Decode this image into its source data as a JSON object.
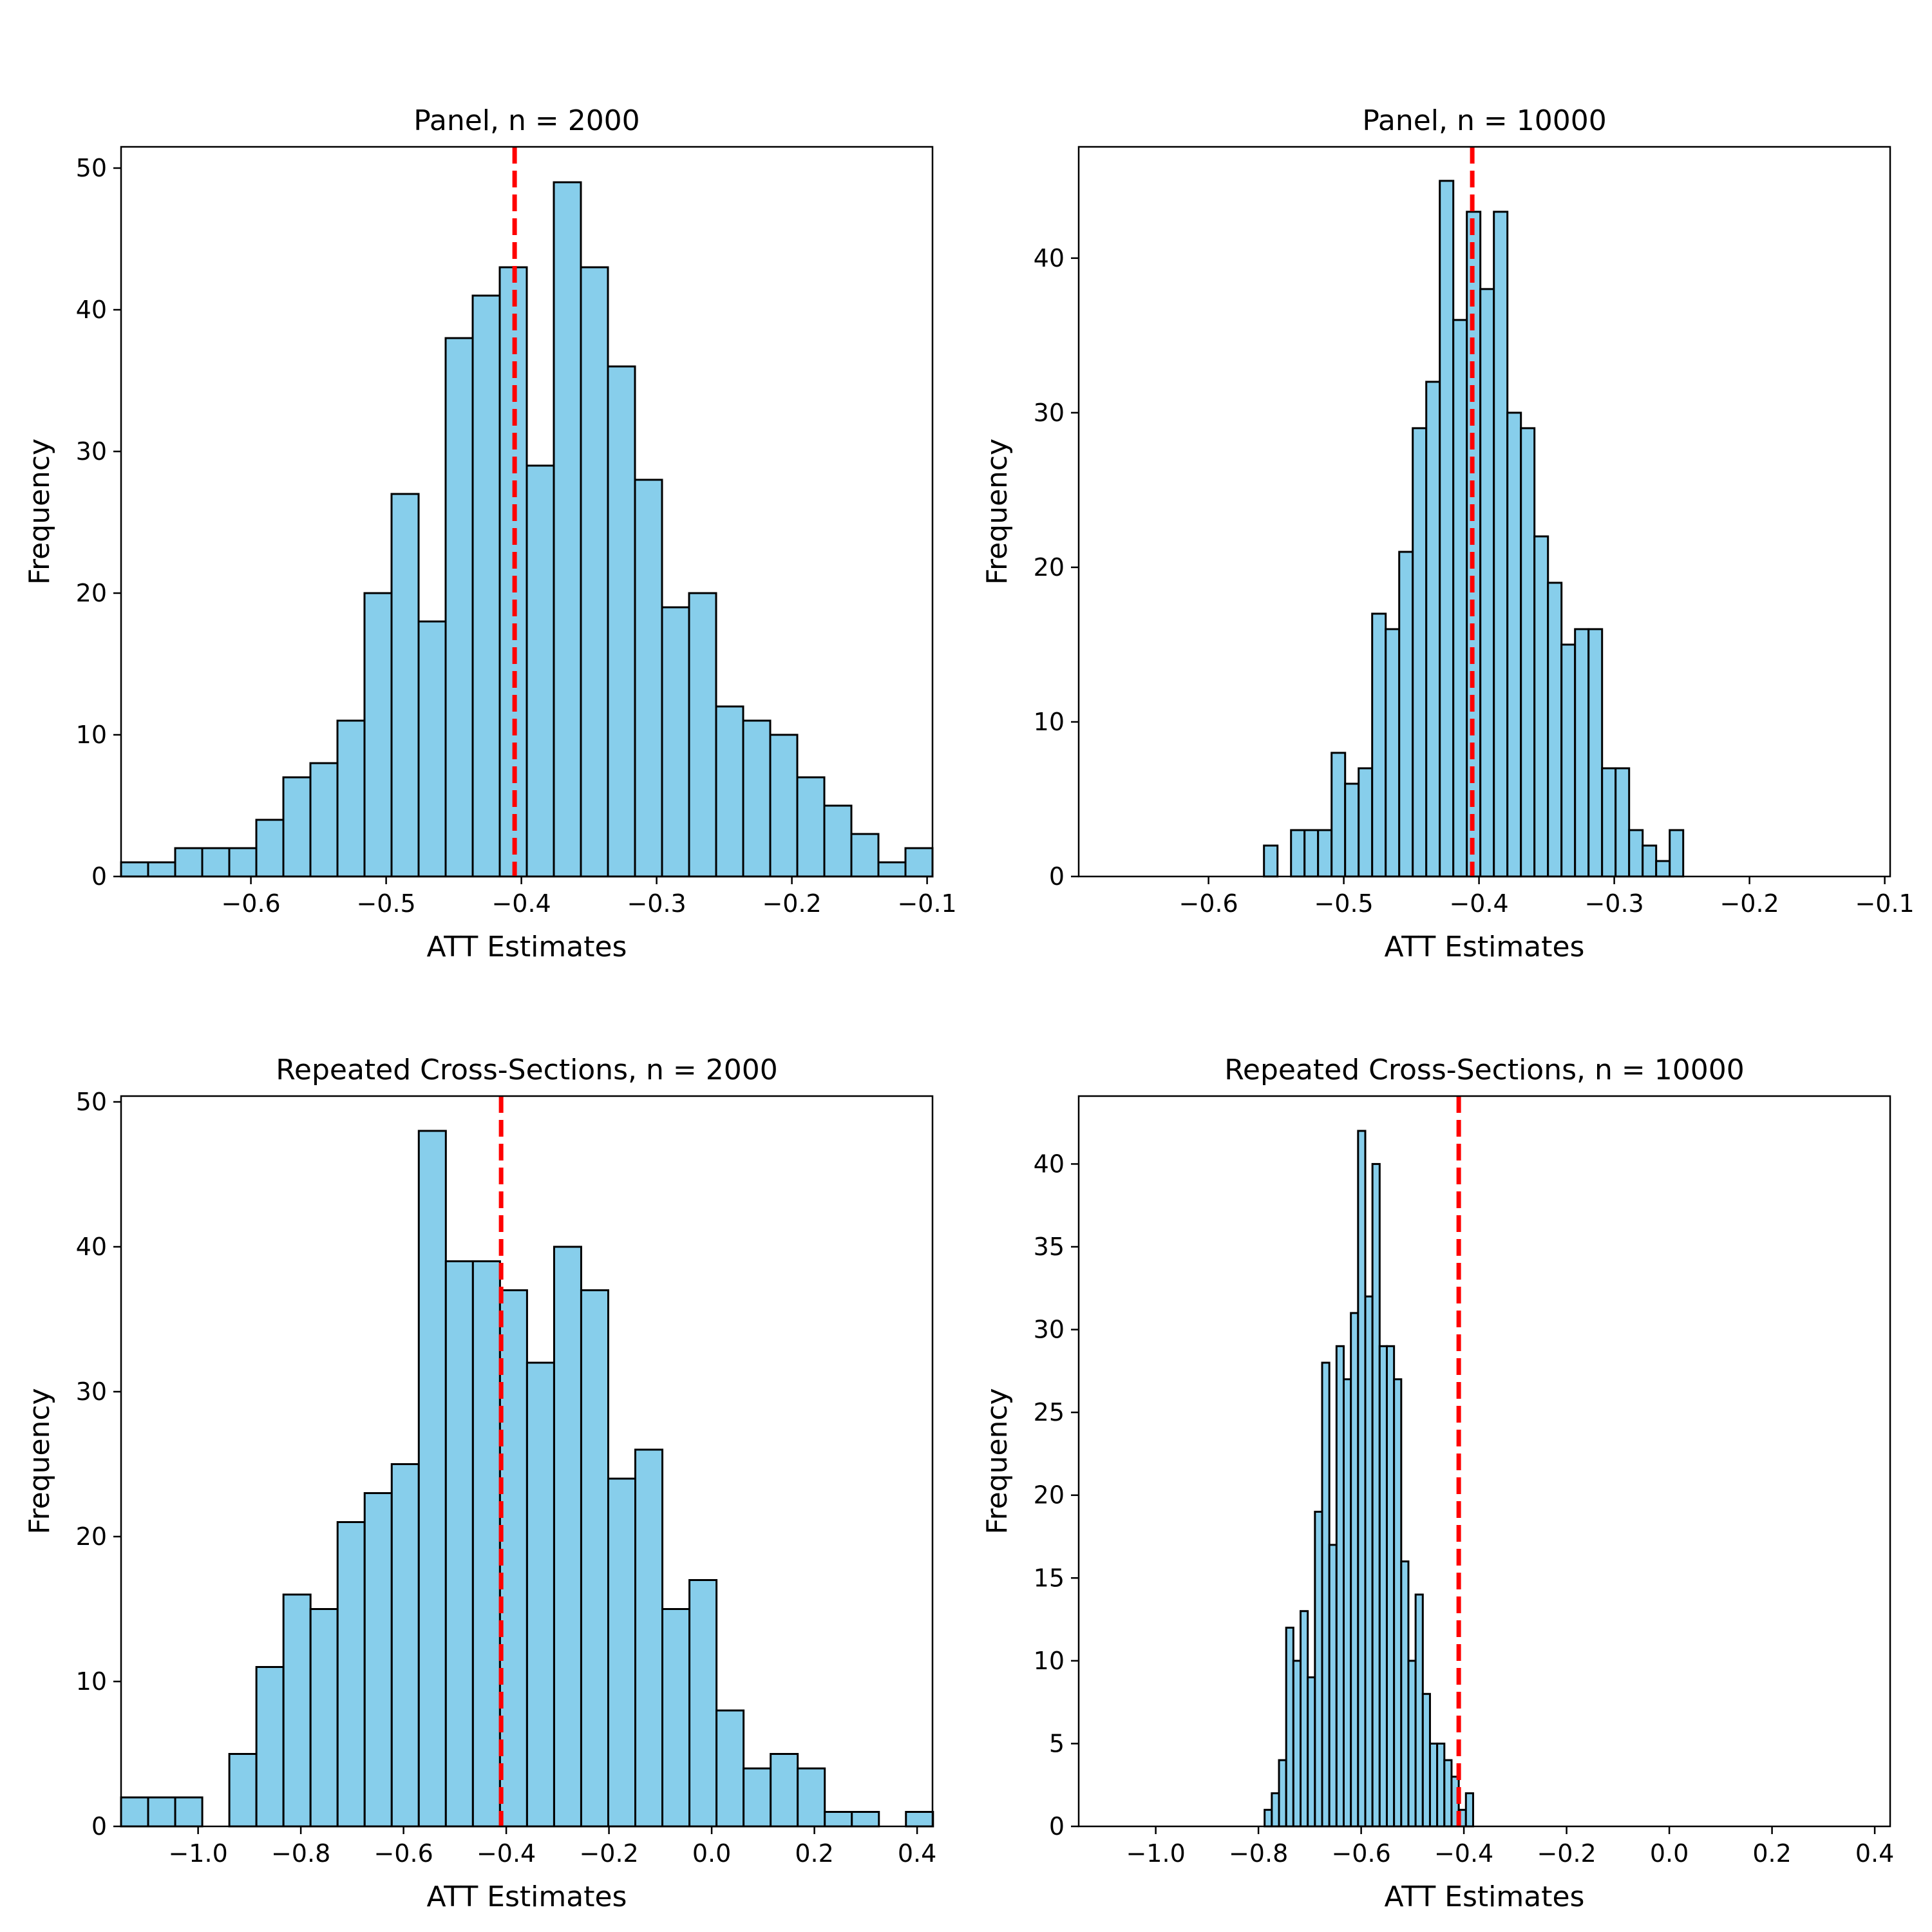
{
  "colors": {
    "bar_fill": "#87CEEB",
    "bar_edge": "#000000",
    "reference_line": "#FF0000"
  },
  "chart_data": [
    {
      "type": "bar",
      "subtype": "histogram",
      "title": "Panel, n = 2000",
      "xlabel": "ATT Estimates",
      "ylabel": "Frequency",
      "xlim": [
        -0.696,
        -0.096
      ],
      "ylim": [
        0,
        51.5
      ],
      "xticks": [
        -0.6,
        -0.5,
        -0.4,
        -0.3,
        -0.2,
        -0.1
      ],
      "xtick_labels": [
        "−0.6",
        "−0.5",
        "−0.4",
        "−0.3",
        "−0.2",
        "−0.1"
      ],
      "yticks": [
        0,
        10,
        20,
        30,
        40,
        50
      ],
      "ytick_labels": [
        "0",
        "10",
        "20",
        "30",
        "40",
        "50"
      ],
      "bin_start": -0.696,
      "bin_width": 0.02,
      "counts": [
        1,
        1,
        2,
        2,
        2,
        4,
        7,
        8,
        11,
        20,
        27,
        18,
        38,
        41,
        43,
        29,
        49,
        43,
        36,
        28,
        19,
        20,
        12,
        11,
        10,
        7,
        5,
        3,
        1,
        2
      ],
      "vline": -0.405
    },
    {
      "type": "bar",
      "subtype": "histogram",
      "title": "Panel, n = 10000",
      "xlabel": "ATT Estimates",
      "ylabel": "Frequency",
      "xlim": [
        -0.696,
        -0.096
      ],
      "ylim": [
        0,
        47.2
      ],
      "xticks": [
        -0.6,
        -0.5,
        -0.4,
        -0.3,
        -0.2,
        -0.1
      ],
      "xtick_labels": [
        "−0.6",
        "−0.5",
        "−0.4",
        "−0.3",
        "−0.2",
        "−0.1"
      ],
      "yticks": [
        0,
        10,
        20,
        30,
        40
      ],
      "ytick_labels": [
        "0",
        "10",
        "20",
        "30",
        "40"
      ],
      "bin_start": -0.559,
      "bin_width": 0.01,
      "counts": [
        2,
        0,
        3,
        3,
        3,
        8,
        6,
        7,
        17,
        16,
        21,
        29,
        32,
        45,
        36,
        43,
        38,
        43,
        30,
        29,
        22,
        19,
        15,
        16,
        16,
        7,
        7,
        3,
        2,
        1,
        3
      ],
      "vline": -0.405
    },
    {
      "type": "bar",
      "subtype": "histogram",
      "title": "Repeated Cross-Sections, n = 2000",
      "xlabel": "ATT Estimates",
      "ylabel": "Frequency",
      "xlim": [
        -1.15,
        0.43
      ],
      "ylim": [
        0,
        50.4
      ],
      "xticks": [
        -1.0,
        -0.8,
        -0.6,
        -0.4,
        -0.2,
        0.0,
        0.2,
        0.4
      ],
      "xtick_labels": [
        "−1.0",
        "−0.8",
        "−0.6",
        "−0.4",
        "−0.2",
        "0.0",
        "0.2",
        "0.4"
      ],
      "yticks": [
        0,
        10,
        20,
        30,
        40,
        50
      ],
      "ytick_labels": [
        "0",
        "10",
        "20",
        "30",
        "40",
        "50"
      ],
      "bin_start": -1.15,
      "bin_width": 0.0527,
      "counts": [
        2,
        2,
        2,
        0,
        5,
        11,
        16,
        15,
        21,
        23,
        25,
        48,
        39,
        39,
        37,
        32,
        40,
        37,
        24,
        26,
        15,
        17,
        8,
        4,
        5,
        4,
        1,
        1,
        0,
        1
      ],
      "vline": -0.41
    },
    {
      "type": "bar",
      "subtype": "histogram",
      "title": "Repeated Cross-Sections, n = 10000",
      "xlabel": "ATT Estimates",
      "ylabel": "Frequency",
      "xlim": [
        -1.15,
        0.43
      ],
      "ylim": [
        0,
        44.1
      ],
      "xticks": [
        -1.0,
        -0.8,
        -0.6,
        -0.4,
        -0.2,
        0.0,
        0.2,
        0.4
      ],
      "xtick_labels": [
        "−1.0",
        "−0.8",
        "−0.6",
        "−0.4",
        "−0.2",
        "0.0",
        "0.2",
        "0.4"
      ],
      "yticks": [
        0,
        5,
        10,
        15,
        20,
        25,
        30,
        35,
        40
      ],
      "ytick_labels": [
        "0",
        "5",
        "10",
        "15",
        "20",
        "25",
        "30",
        "35",
        "40"
      ],
      "bin_start": -0.788,
      "bin_width": 0.014,
      "counts": [
        1,
        2,
        4,
        12,
        10,
        13,
        9,
        19,
        28,
        17,
        29,
        27,
        31,
        42,
        32,
        40,
        29,
        29,
        27,
        16,
        10,
        14,
        8,
        5,
        5,
        4,
        3,
        1,
        2
      ],
      "vline": -0.41
    }
  ]
}
